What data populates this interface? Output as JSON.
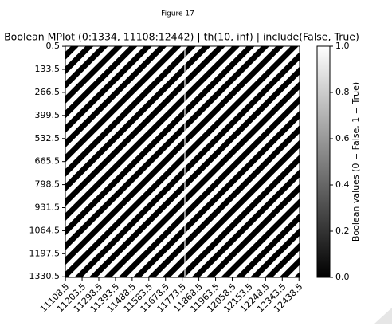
{
  "chart_data": {
    "type": "heatmap",
    "figure_label": "Figure 17",
    "title": "Boolean MPlot (0:1334, 11108:12442) | th(10, inf) | include(False, True)",
    "xlim": [
      11108,
      12442
    ],
    "xticks": [
      11108.5,
      11203.5,
      11298.5,
      11393.5,
      11488.5,
      11583.5,
      11678.5,
      11773.5,
      11868.5,
      11963.5,
      12058.5,
      12153.5,
      12248.5,
      12343.5,
      12438.5
    ],
    "ylim": [
      0,
      1334
    ],
    "y_inverted": true,
    "yticks": [
      0.5,
      133.5,
      266.5,
      399.5,
      532.5,
      665.5,
      798.5,
      931.5,
      1064.5,
      1197.5,
      1330.5
    ],
    "colormap": [
      "#000000",
      "#ffffff"
    ],
    "colorbar": {
      "label": "Boolean values (0 = False, 1 = True)",
      "lim": [
        0,
        1
      ],
      "ticks": [
        {
          "value": 0,
          "label": "0.0"
        },
        {
          "value": 0.2,
          "label": "0.2"
        },
        {
          "value": 0.4,
          "label": "0.4"
        },
        {
          "value": 0.6,
          "label": "0.6"
        },
        {
          "value": 0.8,
          "label": "0.8"
        },
        {
          "value": 1,
          "label": "1.0"
        }
      ]
    }
  }
}
